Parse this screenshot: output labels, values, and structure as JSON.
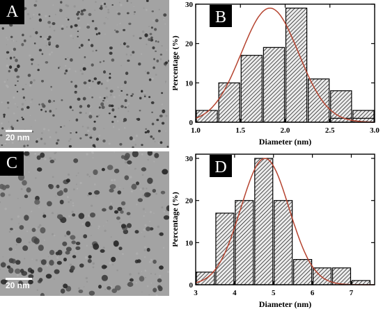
{
  "panels": {
    "A": {
      "letter": "A",
      "scale": "20 nm"
    },
    "C": {
      "letter": "C",
      "scale": "20 nm"
    }
  },
  "chart_data": [
    {
      "panel": "B",
      "type": "bar",
      "x": [
        1.125,
        1.375,
        1.625,
        1.875,
        2.125,
        2.375,
        2.625,
        2.875
      ],
      "bar_width": 0.25,
      "values": [
        3,
        10,
        17,
        19,
        29,
        11,
        8,
        3
      ],
      "extra_bars": {
        "x": [
          2.625,
          2.875
        ],
        "values": [
          1,
          1
        ]
      },
      "fit": {
        "type": "gaussian",
        "center": 1.83,
        "sigma": 0.32,
        "amplitude": 29
      },
      "xlabel": "Diameter (nm)",
      "ylabel": "Percentage (%)",
      "xlim": [
        1.0,
        3.0
      ],
      "ylim": [
        0,
        30
      ],
      "xticks": [
        1.0,
        1.5,
        2.0,
        2.5,
        3.0
      ],
      "xtick_labels": [
        "1.0",
        "1.5",
        "2.0",
        "2.5",
        "3.0"
      ],
      "yticks": [
        0,
        10,
        20,
        30
      ],
      "ytick_labels": [
        "0",
        "10",
        "20",
        "30"
      ]
    },
    {
      "panel": "D",
      "type": "bar",
      "x": [
        3.25,
        3.75,
        4.25,
        4.75,
        5.25,
        5.75,
        6.25,
        6.75,
        7.25
      ],
      "bar_width": 0.5,
      "values": [
        3,
        17,
        20,
        30,
        20,
        6,
        4,
        4,
        1
      ],
      "fit": {
        "type": "gaussian",
        "center": 4.78,
        "sigma": 0.62,
        "amplitude": 30
      },
      "xlabel": "Diameter (nm)",
      "ylabel": "Percentage (%)",
      "xlim": [
        3.0,
        7.6
      ],
      "ylim": [
        0,
        31
      ],
      "xticks": [
        3,
        4,
        5,
        6,
        7
      ],
      "xtick_labels": [
        "3",
        "4",
        "5",
        "6",
        "7"
      ],
      "yticks": [
        0,
        10,
        20,
        30
      ],
      "ytick_labels": [
        "0",
        "10",
        "20",
        "30"
      ]
    }
  ],
  "chart_letters": {
    "B": "B",
    "D": "D"
  },
  "colors": {
    "fit_line": "#b5432f",
    "bar_fill": "#e8e8e8",
    "bar_stroke": "#000000"
  }
}
